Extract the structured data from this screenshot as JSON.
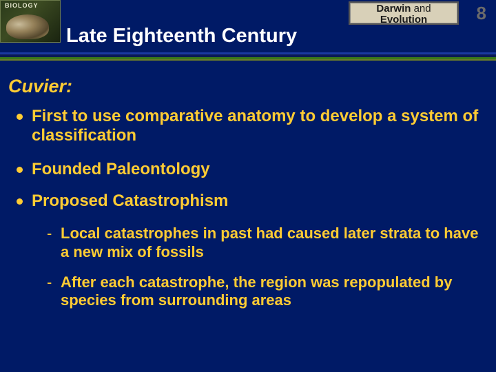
{
  "colors": {
    "slide_bg": "#001a66",
    "accent_text": "#ffcc33",
    "title_text": "#ffffff",
    "page_num": "#6b6b6b",
    "chapter_box_bg": "#d8d0b8",
    "rule_blue": "#1a3aa0",
    "rule_navy": "#0a1a55",
    "rule_green": "#3a7a1a",
    "rule_olive": "#6a7a2a"
  },
  "typography": {
    "title_fontsize": 29,
    "section_fontsize": 27,
    "bullet_fontsize": 24,
    "sub_fontsize": 22,
    "chapter_fontsize": 15,
    "pagenum_fontsize": 26,
    "font_family": "Arial"
  },
  "banner": {
    "book_label": "BIOLOGY",
    "chapter_line1_a": "Darwin",
    "chapter_line1_b": "and",
    "chapter_line2": "Evolution",
    "page_number": "8",
    "slide_title": "Late Eighteenth Century"
  },
  "content": {
    "section_head": "Cuvier:",
    "bullets": [
      "First to use comparative anatomy to develop a system of classification",
      "Founded Paleontology",
      "Proposed Catastrophism"
    ],
    "subpoints": [
      "Local catastrophes in past had caused later strata to have a new mix of fossils",
      "After each catastrophe, the region was repopulated by species from surrounding areas"
    ]
  }
}
